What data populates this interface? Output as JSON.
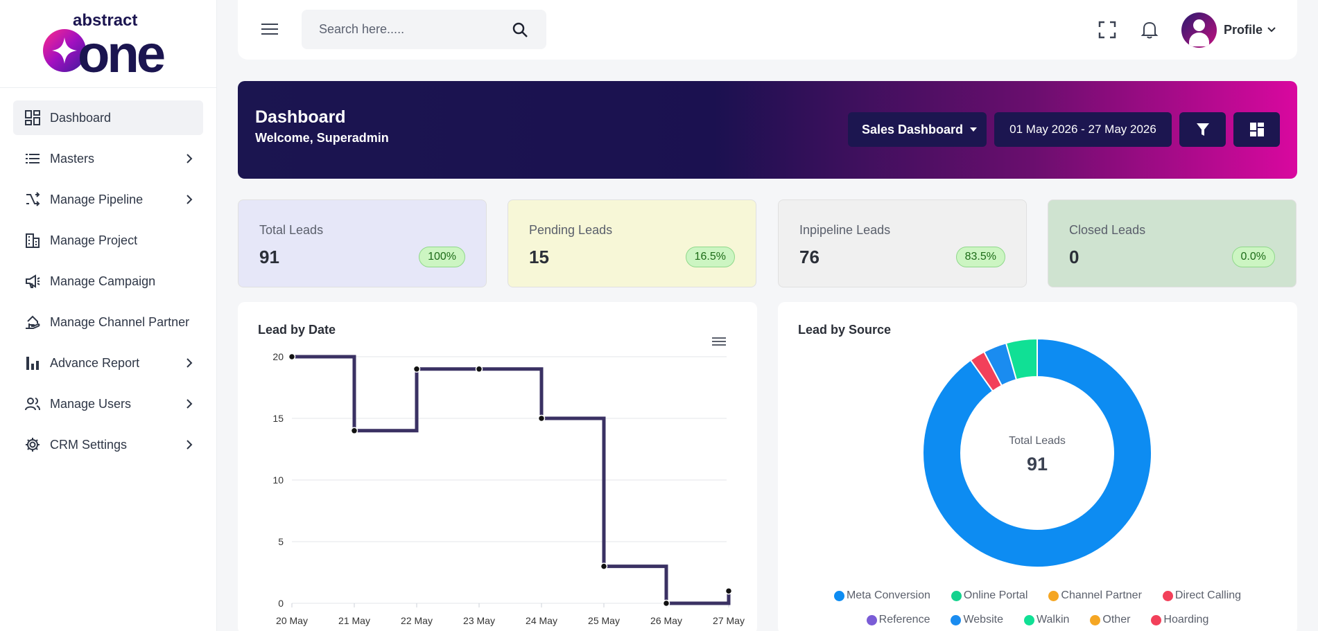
{
  "brand": {
    "logo_text_top": "abstract",
    "logo_text_main": "one"
  },
  "sidebar": {
    "items": [
      {
        "label": "Dashboard",
        "icon": "dashboard-icon",
        "active": true,
        "has_submenu": false
      },
      {
        "label": "Masters",
        "icon": "list-icon",
        "active": false,
        "has_submenu": true
      },
      {
        "label": "Manage Pipeline",
        "icon": "pipeline-icon",
        "active": false,
        "has_submenu": true
      },
      {
        "label": "Manage Project",
        "icon": "building-icon",
        "active": false,
        "has_submenu": false
      },
      {
        "label": "Manage Campaign",
        "icon": "megaphone-icon",
        "active": false,
        "has_submenu": false
      },
      {
        "label": "Manage Channel Partner",
        "icon": "partner-icon",
        "active": false,
        "has_submenu": false
      },
      {
        "label": "Advance Report",
        "icon": "bar-chart-icon",
        "active": false,
        "has_submenu": true
      },
      {
        "label": "Manage Users",
        "icon": "users-icon",
        "active": false,
        "has_submenu": true
      },
      {
        "label": "CRM Settings",
        "icon": "gear-icon",
        "active": false,
        "has_submenu": true
      }
    ]
  },
  "topbar": {
    "search_placeholder": "Search here.....",
    "profile_label": "Profile"
  },
  "banner": {
    "title": "Dashboard",
    "subtitle": "Welcome, Superadmin",
    "dashboard_select": "Sales Dashboard",
    "date_range": "01 May 2026 - 27 May 2026"
  },
  "stats": [
    {
      "label": "Total Leads",
      "value": "91",
      "percent": "100%",
      "bg": "#e6e7f8"
    },
    {
      "label": "Pending Leads",
      "value": "15",
      "percent": "16.5%",
      "bg": "#f7f7d7"
    },
    {
      "label": "Inpipeline Leads",
      "value": "76",
      "percent": "83.5%",
      "bg": "#f0f0f0"
    },
    {
      "label": "Closed Leads",
      "value": "0",
      "percent": "0.0%",
      "bg": "#cfe3d0"
    }
  ],
  "charts": {
    "line_title": "Lead by Date",
    "donut_title": "Lead by Source",
    "donut_center_label": "Total Leads",
    "donut_center_value": "91"
  },
  "chart_data": [
    {
      "type": "line",
      "title": "Lead by Date",
      "step": true,
      "categories": [
        "20 May",
        "21 May",
        "22 May",
        "23 May",
        "24 May",
        "25 May",
        "26 May",
        "27 May"
      ],
      "values": [
        20,
        14,
        19,
        19,
        15,
        3,
        0,
        1
      ],
      "y_ticks": [
        0,
        5,
        10,
        15,
        20
      ],
      "ylim": [
        0,
        20
      ],
      "color": "#3a3163",
      "grid": true
    },
    {
      "type": "pie",
      "donut": true,
      "title": "Lead by Source",
      "total": 91,
      "slices": [
        {
          "name": "Meta Conversion",
          "value": 82,
          "color": "#0d8cf2"
        },
        {
          "name": "Online Portal",
          "value": 0,
          "color": "#14d28e"
        },
        {
          "name": "Channel Partner",
          "value": 0,
          "color": "#f5a623"
        },
        {
          "name": "Direct Calling",
          "value": 2,
          "color": "#f2405a"
        },
        {
          "name": "Reference",
          "value": 0,
          "color": "#7a5cd6"
        },
        {
          "name": "Website",
          "value": 3,
          "color": "#1a8cf0"
        },
        {
          "name": "Walkin",
          "value": 4,
          "color": "#10e095"
        },
        {
          "name": "Other",
          "value": 0,
          "color": "#f5a623"
        },
        {
          "name": "Hoarding",
          "value": 0,
          "color": "#f2405a"
        }
      ],
      "legend_rows": [
        [
          "Meta Conversion",
          "Online Portal",
          "Channel Partner",
          "Direct Calling"
        ],
        [
          "Reference",
          "Website",
          "Walkin",
          "Other",
          "Hoarding"
        ]
      ]
    }
  ]
}
